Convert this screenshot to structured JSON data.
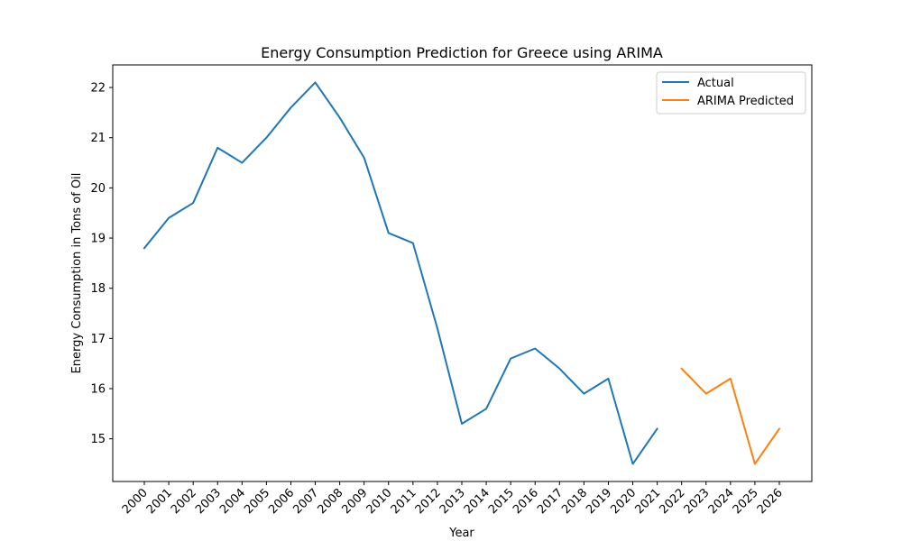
{
  "chart_data": {
    "type": "line",
    "title": "Energy Consumption Prediction for Greece using ARIMA",
    "xlabel": "Year",
    "ylabel": "Energy Consumption in Tons of Oil",
    "x": [
      "2000",
      "2001",
      "2002",
      "2003",
      "2004",
      "2005",
      "2006",
      "2007",
      "2008",
      "2009",
      "2010",
      "2011",
      "2012",
      "2013",
      "2014",
      "2015",
      "2016",
      "2017",
      "2018",
      "2019",
      "2020",
      "2021",
      "2022",
      "2023",
      "2024",
      "2025",
      "2026"
    ],
    "ylim": [
      14.15,
      22.45
    ],
    "yticks": [
      15,
      16,
      17,
      18,
      19,
      20,
      21,
      22
    ],
    "legend_position": "top-right",
    "grid": false,
    "series": [
      {
        "name": "Actual",
        "color": "#1f77b4",
        "x": [
          "2000",
          "2001",
          "2002",
          "2003",
          "2004",
          "2005",
          "2006",
          "2007",
          "2008",
          "2009",
          "2010",
          "2011",
          "2012",
          "2013",
          "2014",
          "2015",
          "2016",
          "2017",
          "2018",
          "2019",
          "2020",
          "2021"
        ],
        "values": [
          18.8,
          19.4,
          19.7,
          20.8,
          20.5,
          21.0,
          21.6,
          22.1,
          21.4,
          20.6,
          19.1,
          18.9,
          17.2,
          15.3,
          15.6,
          16.6,
          16.8,
          16.4,
          15.9,
          16.2,
          14.5,
          15.2
        ]
      },
      {
        "name": "ARIMA Predicted",
        "color": "#ff7f0e",
        "x": [
          "2022",
          "2023",
          "2024",
          "2025",
          "2026"
        ],
        "values": [
          16.4,
          15.9,
          16.2,
          14.5,
          15.2
        ]
      }
    ]
  }
}
